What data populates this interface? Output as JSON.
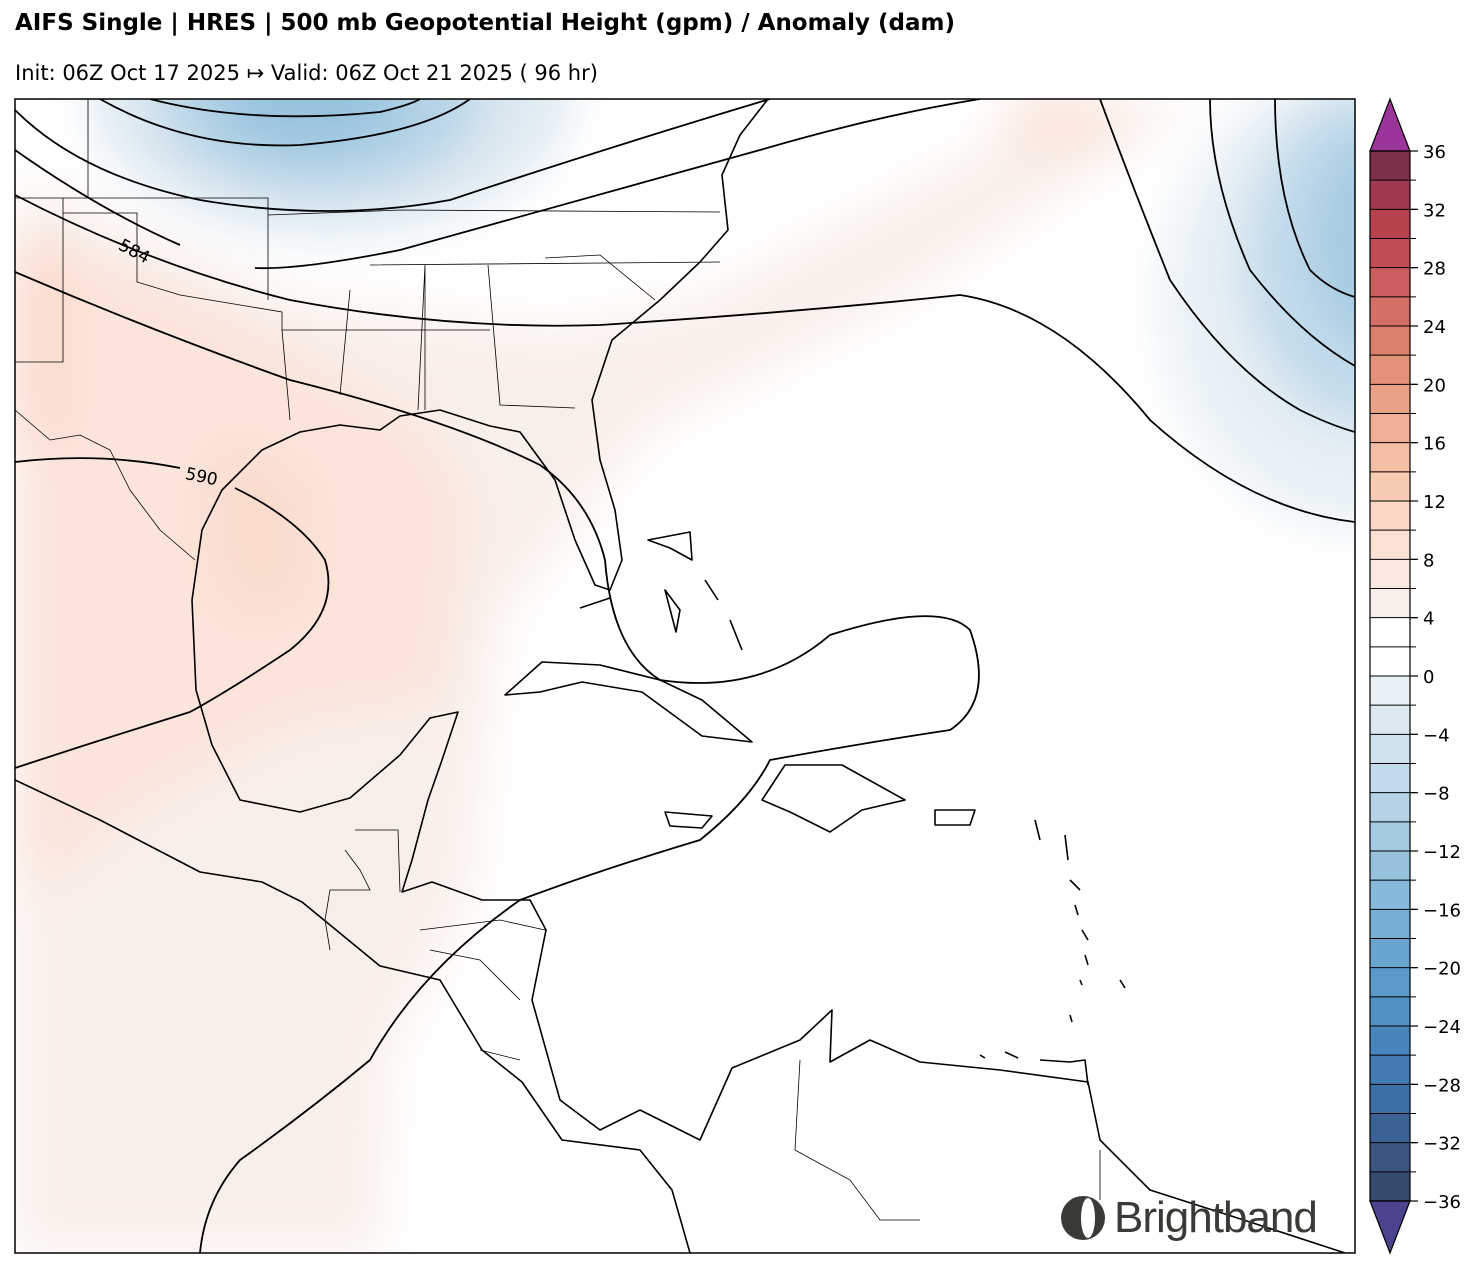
{
  "header": {
    "title": "AIFS Single | HRES | 500 mb Geopotential Height (gpm) / Anomaly (dam)",
    "subtitle": "Init: 06Z Oct 17 2025 ↦ Valid: 06Z Oct 21 2025 ( 96 hr)"
  },
  "map": {
    "contour_labels": [
      "584",
      "590"
    ]
  },
  "colorbar": {
    "min": -36,
    "max": 36,
    "step": 2,
    "tick_labels": [
      "36",
      "32",
      "28",
      "24",
      "20",
      "16",
      "12",
      "8",
      "4",
      "0",
      "−4",
      "−8",
      "−12",
      "−16",
      "−20",
      "−24",
      "−28",
      "−32",
      "−36"
    ],
    "over_color": "#9a3599",
    "under_color": "#4a4490",
    "band_colors_top_to_bottom": [
      "#7e3048",
      "#a03a50",
      "#b8434f",
      "#c24c56",
      "#cc5d5e",
      "#d46e66",
      "#dc806e",
      "#e4917a",
      "#eaa286",
      "#efb095",
      "#f3bea4",
      "#f7cbb4",
      "#f9d6c5",
      "#fbe1d4",
      "#fbe9e1",
      "#f9efea",
      "#ffffff",
      "#ffffff",
      "#e9f1f6",
      "#dde9f1",
      "#d0e2ee",
      "#c3dbea",
      "#b4d3e6",
      "#a5cbe2",
      "#96c2de",
      "#86b9da",
      "#77afd4",
      "#69a5cf",
      "#5c9bc9",
      "#5190c3",
      "#4985bd",
      "#437ab3",
      "#3e6ea6",
      "#3b6295",
      "#3a557f",
      "#38496e"
    ]
  },
  "logo": {
    "text": "Brightband"
  }
}
